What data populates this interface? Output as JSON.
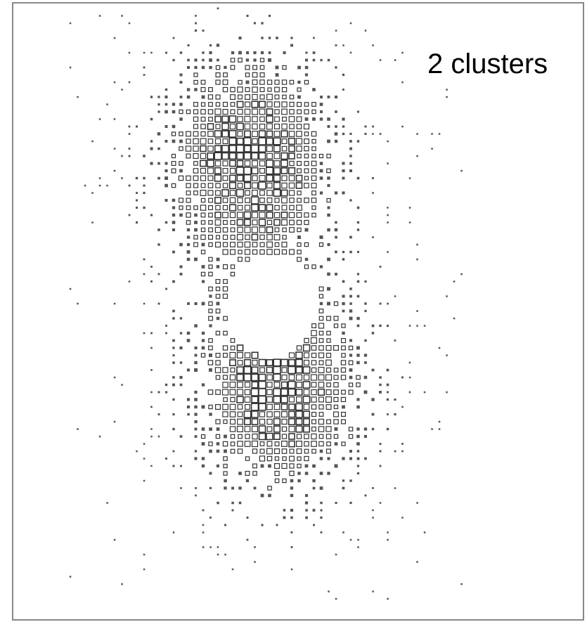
{
  "annotation": "2 clusters"
}
